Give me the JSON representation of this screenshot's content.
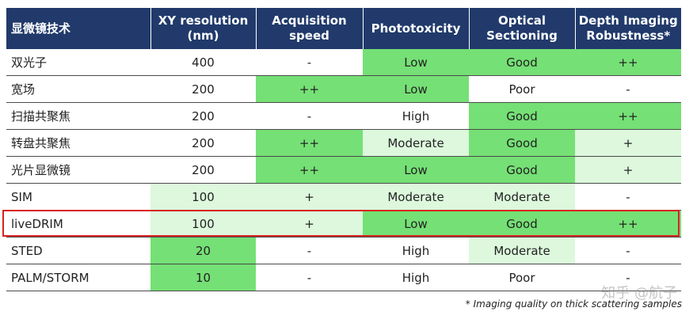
{
  "headers": [
    "显微镜技术",
    "XY resolution (nm)",
    "Acquisition speed",
    "Phototoxicity",
    "Optical Sectioning",
    "Depth Imaging Robustness*"
  ],
  "colors": {
    "header_bg": "#213a6b",
    "strong_green": "#75e075",
    "light_green": "#ddf8dd",
    "highlight_border": "#d92121"
  },
  "rows": [
    {
      "cells": [
        {
          "text": "双光子",
          "level": "none"
        },
        {
          "text": "400",
          "level": "none"
        },
        {
          "text": "-",
          "level": "none"
        },
        {
          "text": "Low",
          "level": "strong"
        },
        {
          "text": "Good",
          "level": "strong"
        },
        {
          "text": "++",
          "level": "strong"
        }
      ]
    },
    {
      "cells": [
        {
          "text": "宽场",
          "level": "none"
        },
        {
          "text": "200",
          "level": "none"
        },
        {
          "text": "++",
          "level": "strong"
        },
        {
          "text": "Low",
          "level": "strong"
        },
        {
          "text": "Poor",
          "level": "none"
        },
        {
          "text": "-",
          "level": "none"
        }
      ]
    },
    {
      "cells": [
        {
          "text": "扫描共聚焦",
          "level": "none"
        },
        {
          "text": "200",
          "level": "none"
        },
        {
          "text": "-",
          "level": "none"
        },
        {
          "text": "High",
          "level": "none"
        },
        {
          "text": "Good",
          "level": "strong"
        },
        {
          "text": "++",
          "level": "strong"
        }
      ]
    },
    {
      "cells": [
        {
          "text": "转盘共聚焦",
          "level": "none"
        },
        {
          "text": "200",
          "level": "none"
        },
        {
          "text": "++",
          "level": "strong"
        },
        {
          "text": "Moderate",
          "level": "light"
        },
        {
          "text": "Good",
          "level": "strong"
        },
        {
          "text": "+",
          "level": "light"
        }
      ]
    },
    {
      "cells": [
        {
          "text": "光片显微镜",
          "level": "none"
        },
        {
          "text": "200",
          "level": "none"
        },
        {
          "text": "++",
          "level": "strong"
        },
        {
          "text": "Low",
          "level": "strong"
        },
        {
          "text": "Good",
          "level": "strong"
        },
        {
          "text": "+",
          "level": "light"
        }
      ]
    },
    {
      "cells": [
        {
          "text": "SIM",
          "level": "none"
        },
        {
          "text": "100",
          "level": "light"
        },
        {
          "text": "+",
          "level": "light"
        },
        {
          "text": "Moderate",
          "level": "light"
        },
        {
          "text": "Moderate",
          "level": "light"
        },
        {
          "text": "-",
          "level": "none"
        }
      ]
    },
    {
      "cells": [
        {
          "text": "liveDRIM",
          "level": "none"
        },
        {
          "text": "100",
          "level": "light"
        },
        {
          "text": "+",
          "level": "light"
        },
        {
          "text": "Low",
          "level": "strong"
        },
        {
          "text": "Good",
          "level": "strong"
        },
        {
          "text": "++",
          "level": "strong"
        }
      ]
    },
    {
      "cells": [
        {
          "text": "STED",
          "level": "none"
        },
        {
          "text": "20",
          "level": "strong"
        },
        {
          "text": "-",
          "level": "none"
        },
        {
          "text": "High",
          "level": "none"
        },
        {
          "text": "Moderate",
          "level": "light"
        },
        {
          "text": "-",
          "level": "none"
        }
      ]
    },
    {
      "cells": [
        {
          "text": "PALM/STORM",
          "level": "none"
        },
        {
          "text": "10",
          "level": "strong"
        },
        {
          "text": "-",
          "level": "none"
        },
        {
          "text": "High",
          "level": "none"
        },
        {
          "text": "Poor",
          "level": "none"
        },
        {
          "text": "-",
          "level": "none"
        }
      ]
    }
  ],
  "highlighted_row": "liveDRIM",
  "footnote": "* Imaging quality on thick scattering samples",
  "watermark": "知乎 @航子"
}
